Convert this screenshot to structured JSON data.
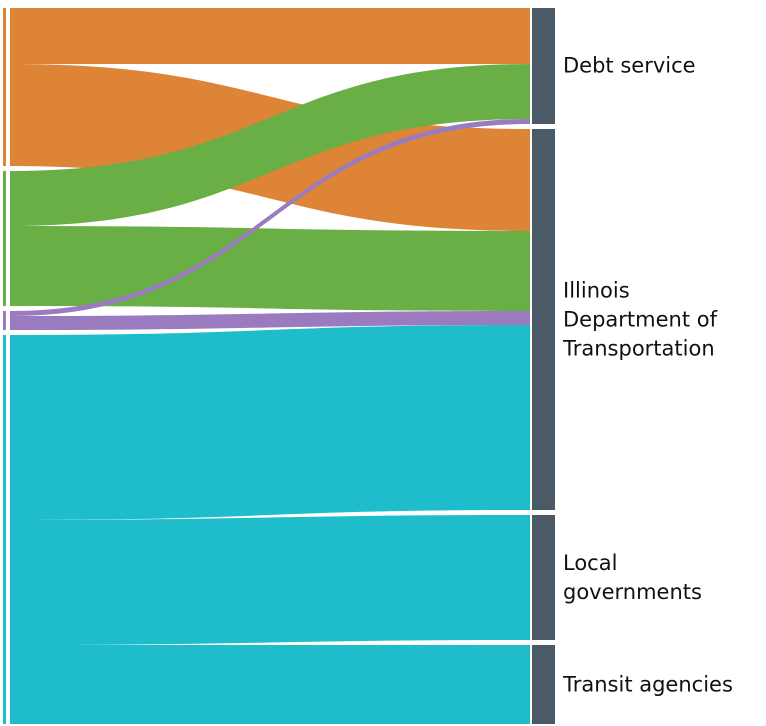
{
  "chart_data": {
    "type": "sankey",
    "node_color": "#4a5a66",
    "sources": [
      {
        "color": "#dd8436"
      },
      {
        "color": "#6aaf45"
      },
      {
        "color": "#9b7bbf"
      },
      {
        "color": "#1fbccb"
      }
    ],
    "targets": [
      {
        "name": "Debt service"
      },
      {
        "name": "Illinois Department of Transportation"
      },
      {
        "name": "Local governments"
      },
      {
        "name": "Transit agencies"
      }
    ],
    "links": [
      {
        "source": 0,
        "target": 0,
        "value": 56
      },
      {
        "source": 0,
        "target": 1,
        "value": 102
      },
      {
        "source": 1,
        "target": 0,
        "value": 55
      },
      {
        "source": 1,
        "target": 1,
        "value": 80
      },
      {
        "source": 2,
        "target": 0,
        "value": 5
      },
      {
        "source": 2,
        "target": 1,
        "value": 14
      },
      {
        "source": 3,
        "target": 1,
        "value": 185
      },
      {
        "source": 3,
        "target": 2,
        "value": 125
      },
      {
        "source": 3,
        "target": 3,
        "value": 79
      }
    ]
  }
}
